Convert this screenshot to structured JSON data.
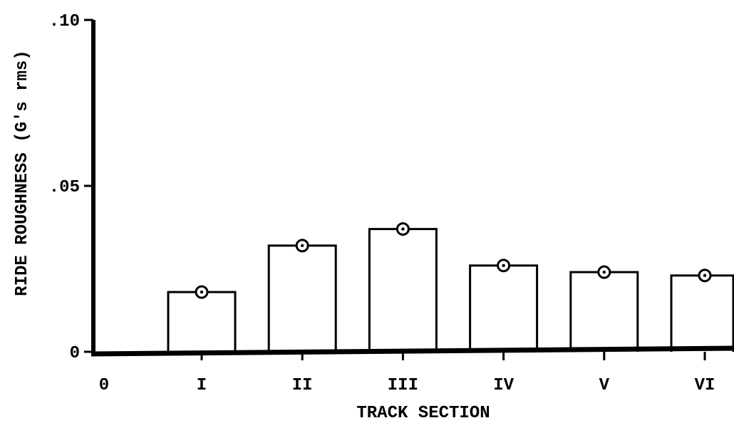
{
  "chart_data": {
    "type": "bar",
    "xlabel": "TRACK SECTION",
    "ylabel": "RIDE ROUGHNESS (G's rms)",
    "x_origin_label": "0",
    "categories": [
      "I",
      "II",
      "III",
      "IV",
      "V",
      "VI"
    ],
    "values": [
      0.018,
      0.032,
      0.037,
      0.026,
      0.024,
      0.023
    ],
    "ylim": [
      0,
      0.1
    ],
    "yticks": [
      0,
      0.05,
      0.1
    ],
    "ytick_labels": [
      "0",
      ".05",
      ".10"
    ],
    "marker": "circle-with-dot",
    "grid": false,
    "colors": {
      "bar_fill": "#ffffff",
      "stroke": "#000000"
    }
  }
}
